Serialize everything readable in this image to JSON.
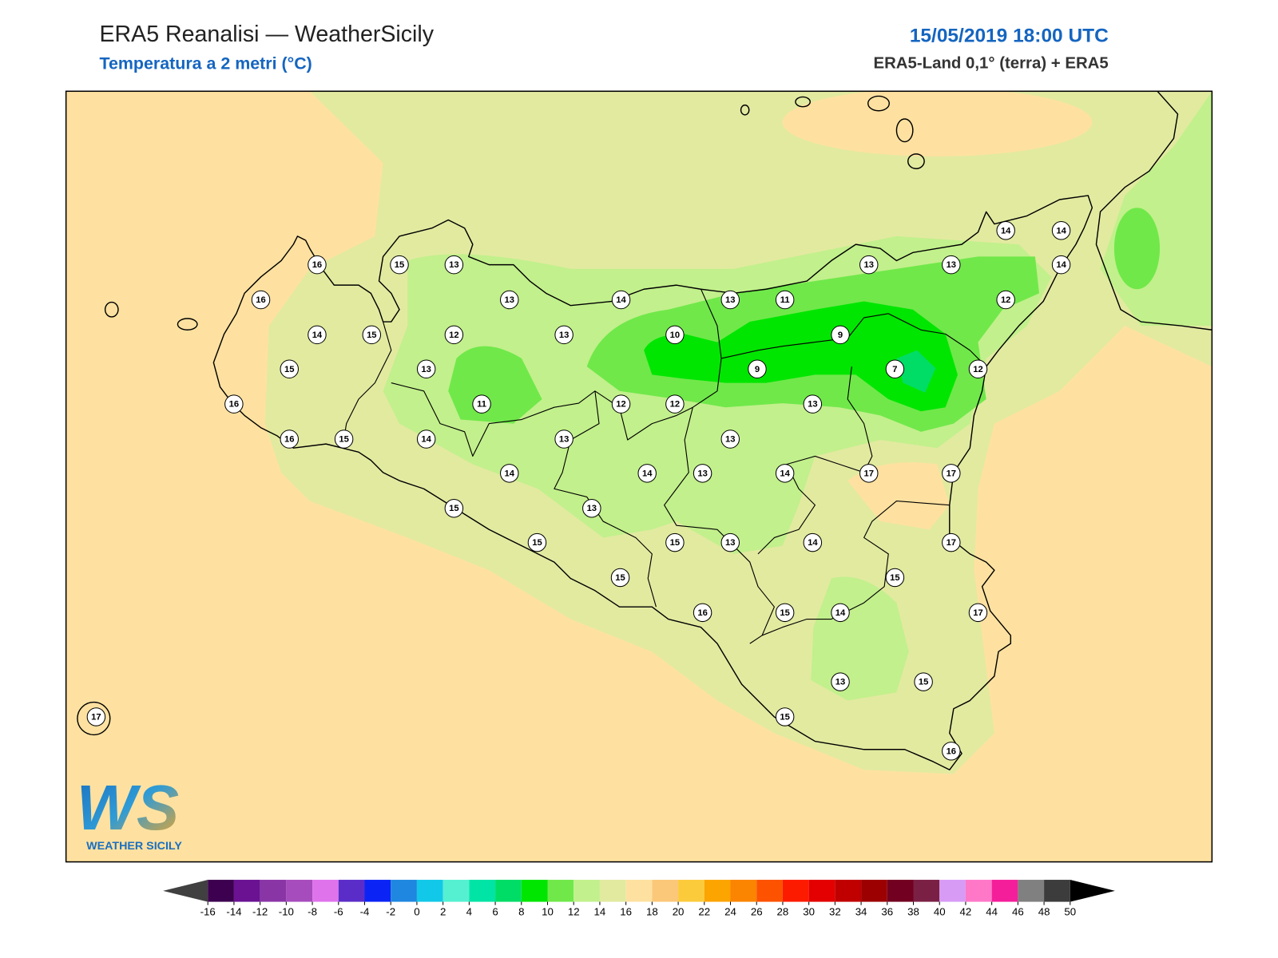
{
  "header": {
    "title": "ERA5 Reanalisi — WeatherSicily",
    "subtitle": "Temperatura a 2 metri (°C)",
    "datetime": "15/05/2019 18:00 UTC",
    "source": "ERA5-Land 0,1° (terra) + ERA5"
  },
  "stations": [
    16,
    15,
    13,
    16,
    13,
    14,
    13,
    11,
    13,
    13,
    14,
    14,
    14,
    12,
    14,
    15,
    12,
    13,
    10,
    9,
    15,
    13,
    9,
    7,
    12,
    16,
    11,
    12,
    12,
    13,
    16,
    15,
    14,
    13,
    13,
    14,
    14,
    13,
    14,
    17,
    17,
    15,
    13,
    15,
    15,
    13,
    14,
    17,
    15,
    15,
    16,
    15,
    14,
    17,
    13,
    15,
    17,
    15,
    16
  ],
  "colorbar": {
    "ticks": [
      -16,
      -14,
      -12,
      -10,
      -8,
      -6,
      -4,
      -2,
      0,
      2,
      4,
      6,
      8,
      10,
      12,
      14,
      16,
      18,
      20,
      22,
      24,
      26,
      28,
      30,
      32,
      34,
      36,
      38,
      40,
      42,
      44,
      46,
      48,
      50
    ],
    "colors": [
      "#3d0050",
      "#6a1292",
      "#8a35a6",
      "#a64cbc",
      "#df73ec",
      "#5b2dc8",
      "#0b24f5",
      "#1f87df",
      "#12c8e8",
      "#55f0d2",
      "#00e4a5",
      "#00dd66",
      "#00e600",
      "#70e84a",
      "#c2f08c",
      "#e2eaa0",
      "#fee1a0",
      "#fbc879",
      "#fccb3c",
      "#fca400",
      "#fb8400",
      "#fd5200",
      "#fd1b00",
      "#e40000",
      "#c00000",
      "#9c0000",
      "#720020",
      "#7b2045",
      "#d79bf5",
      "#ff78c8",
      "#f51e9a",
      "#808080",
      "#3c3c3c"
    ],
    "under_color": "#404040",
    "over_color": "#000000"
  },
  "logo": {
    "initials": "WS",
    "name": "WEATHER SICILY"
  }
}
